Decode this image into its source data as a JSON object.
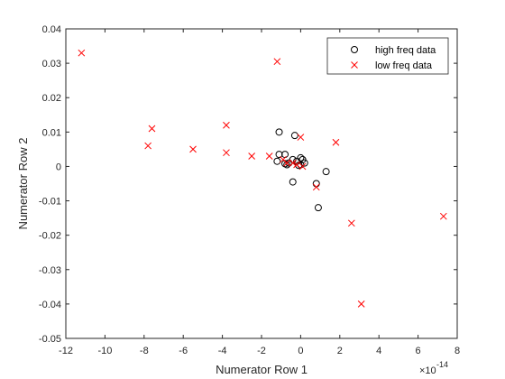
{
  "chart_data": {
    "type": "scatter",
    "title": "",
    "xlabel": "Numerator Row 1",
    "ylabel": "Numerator Row 2",
    "x_multiplier_label": "×10",
    "x_multiplier_exponent": "-14",
    "xlim": [
      -12,
      8
    ],
    "ylim": [
      -0.05,
      0.04
    ],
    "x_ticks": [
      -12,
      -10,
      -8,
      -6,
      -4,
      -2,
      0,
      2,
      4,
      6,
      8
    ],
    "x_tick_labels": [
      "-12",
      "-10",
      "-8",
      "-6",
      "-4",
      "-2",
      "0",
      "2",
      "4",
      "6",
      "8"
    ],
    "y_ticks": [
      -0.05,
      -0.04,
      -0.03,
      -0.02,
      -0.01,
      0,
      0.01,
      0.02,
      0.03,
      0.04
    ],
    "y_tick_labels": [
      "-0.05",
      "-0.04",
      "-0.03",
      "-0.02",
      "-0.01",
      "0",
      "0.01",
      "0.02",
      "0.03",
      "0.04"
    ],
    "grid": false,
    "box": true,
    "legend_position": "top-right",
    "series": [
      {
        "name": "high freq data",
        "marker": "circle",
        "color": "#000000",
        "points": [
          [
            -1.1,
            0.01
          ],
          [
            -1.1,
            0.0035
          ],
          [
            -1.2,
            0.0015
          ],
          [
            -0.8,
            0.0035
          ],
          [
            -0.8,
            0.0008
          ],
          [
            -0.7,
            0.0005
          ],
          [
            -0.6,
            0.001
          ],
          [
            -0.4,
            0.002
          ],
          [
            -0.3,
            0.009
          ],
          [
            -0.4,
            -0.0045
          ],
          [
            -0.2,
            0.0015
          ],
          [
            0.0,
            0.0025
          ],
          [
            0.1,
            0.002
          ],
          [
            0.2,
            0.001
          ],
          [
            0.0,
            0.0005
          ],
          [
            -0.1,
            0.0003
          ],
          [
            0.8,
            -0.005
          ],
          [
            0.9,
            -0.012
          ],
          [
            1.3,
            -0.0015
          ]
        ]
      },
      {
        "name": "low freq data",
        "marker": "x",
        "color": "#ff0000",
        "points": [
          [
            -11.2,
            0.033
          ],
          [
            -7.6,
            0.011
          ],
          [
            -7.8,
            0.006
          ],
          [
            -5.5,
            0.005
          ],
          [
            -3.8,
            0.012
          ],
          [
            -3.8,
            0.004
          ],
          [
            -2.5,
            0.003
          ],
          [
            -1.6,
            0.003
          ],
          [
            -1.2,
            0.0305
          ],
          [
            -0.9,
            0.002
          ],
          [
            -0.7,
            0.001
          ],
          [
            -0.4,
            0.001
          ],
          [
            -0.2,
            0.0005
          ],
          [
            0.0,
            0.0085
          ],
          [
            0.1,
            0.0
          ],
          [
            1.8,
            0.007
          ],
          [
            0.8,
            -0.006
          ],
          [
            2.6,
            -0.0165
          ],
          [
            3.1,
            -0.04
          ],
          [
            7.3,
            -0.0145
          ]
        ]
      }
    ]
  }
}
